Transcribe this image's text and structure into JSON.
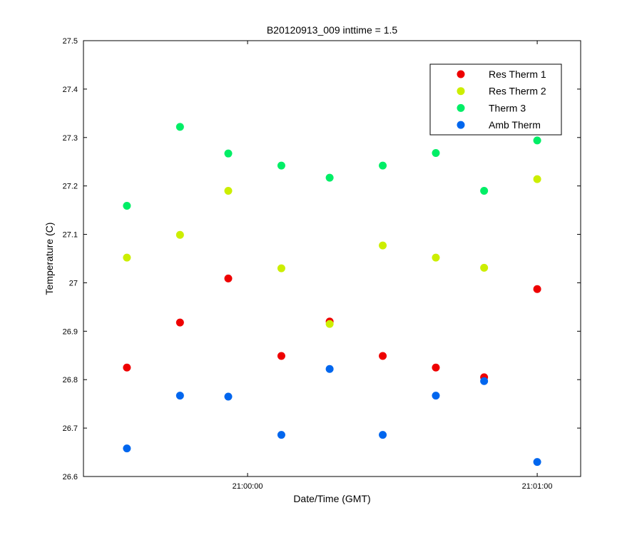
{
  "chart_data": {
    "type": "scatter",
    "title": "B20120913_009 inttime = 1.5",
    "xlabel": "Date/Time (GMT)",
    "ylabel": "Temperature (C)",
    "xlim": [
      "20:59:26",
      "21:01:09"
    ],
    "ylim": [
      26.6,
      27.5
    ],
    "x_ticks": [
      "21:00:00",
      "21:01:00"
    ],
    "y_ticks": [
      "26.6",
      "26.7",
      "26.8",
      "26.9",
      "27",
      "27.1",
      "27.2",
      "27.3",
      "27.4",
      "27.5"
    ],
    "x": [
      "20:59:35",
      "20:59:46",
      "20:59:56",
      "21:00:07",
      "21:00:17",
      "21:00:28",
      "21:00:39",
      "21:00:49",
      "21:01:00"
    ],
    "series": [
      {
        "name": "Res Therm 1",
        "color": "#ee0000",
        "values": [
          26.825,
          26.918,
          27.009,
          26.849,
          26.92,
          26.849,
          26.825,
          26.805,
          26.987
        ]
      },
      {
        "name": "Res Therm 2",
        "color": "#ccee00",
        "values": [
          27.052,
          27.099,
          27.19,
          27.03,
          26.915,
          27.077,
          27.052,
          27.031,
          27.214
        ]
      },
      {
        "name": "Therm 3",
        "color": "#00ee66",
        "values": [
          27.159,
          27.322,
          27.267,
          27.242,
          27.217,
          27.242,
          27.268,
          27.19,
          27.294
        ]
      },
      {
        "name": "Amb Therm",
        "color": "#0066ee",
        "values": [
          26.658,
          26.767,
          26.765,
          26.686,
          26.822,
          26.686,
          26.767,
          26.797,
          26.63
        ]
      }
    ],
    "grid": false,
    "legend": "top-right"
  }
}
